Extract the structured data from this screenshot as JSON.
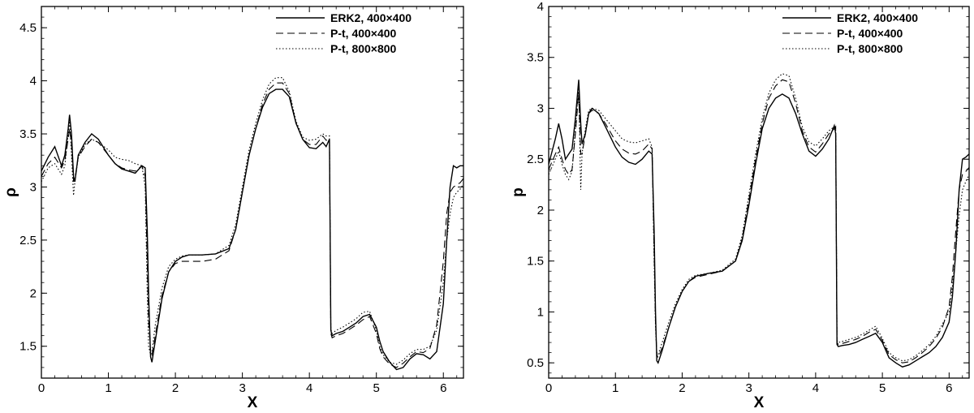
{
  "chart_data": [
    {
      "type": "line",
      "xlabel": "X",
      "ylabel": "ρ",
      "xlim": [
        0,
        6.3
      ],
      "ylim": [
        1.2,
        4.7
      ],
      "xticks": [
        "0",
        "1",
        "2",
        "3",
        "4",
        "5",
        "6"
      ],
      "yticks": [
        "1.5",
        "2",
        "2.5",
        "3",
        "3.5",
        "4",
        "4.5"
      ],
      "legend_position": "top-right",
      "series": [
        {
          "name": "ERK2, 400×400",
          "style": "solid",
          "x": [
            0,
            0.1,
            0.2,
            0.3,
            0.35,
            0.4,
            0.42,
            0.45,
            0.48,
            0.5,
            0.55,
            0.65,
            0.75,
            0.85,
            1.0,
            1.1,
            1.2,
            1.3,
            1.4,
            1.5,
            1.55,
            1.58,
            1.6,
            1.63,
            1.65,
            1.7,
            1.8,
            1.9,
            2.0,
            2.1,
            2.2,
            2.4,
            2.6,
            2.8,
            2.9,
            3.0,
            3.1,
            3.2,
            3.3,
            3.4,
            3.5,
            3.6,
            3.7,
            3.8,
            3.9,
            4.0,
            4.1,
            4.2,
            4.25,
            4.3,
            4.32,
            4.34,
            4.4,
            4.5,
            4.6,
            4.7,
            4.8,
            4.9,
            5.0,
            5.05,
            5.1,
            5.2,
            5.3,
            5.4,
            5.5,
            5.6,
            5.7,
            5.8,
            5.9,
            6.0,
            6.05,
            6.1,
            6.15,
            6.2,
            6.25,
            6.3
          ],
          "y": [
            3.15,
            3.28,
            3.38,
            3.2,
            3.3,
            3.55,
            3.68,
            3.5,
            3.1,
            3.05,
            3.3,
            3.42,
            3.5,
            3.45,
            3.3,
            3.22,
            3.17,
            3.15,
            3.13,
            3.2,
            3.18,
            2.6,
            2.0,
            1.4,
            1.35,
            1.55,
            1.95,
            2.2,
            2.3,
            2.34,
            2.36,
            2.36,
            2.37,
            2.42,
            2.6,
            2.95,
            3.3,
            3.55,
            3.75,
            3.88,
            3.92,
            3.92,
            3.85,
            3.6,
            3.45,
            3.37,
            3.36,
            3.42,
            3.38,
            3.45,
            1.65,
            1.6,
            1.62,
            1.64,
            1.68,
            1.72,
            1.78,
            1.8,
            1.68,
            1.55,
            1.45,
            1.35,
            1.28,
            1.3,
            1.38,
            1.43,
            1.42,
            1.38,
            1.45,
            1.9,
            2.5,
            3.0,
            3.2,
            3.18,
            3.2,
            3.2
          ]
        },
        {
          "name": "P-t, 400×400",
          "style": "dashed",
          "x": [
            0,
            0.1,
            0.2,
            0.3,
            0.35,
            0.4,
            0.42,
            0.45,
            0.48,
            0.5,
            0.55,
            0.65,
            0.75,
            0.85,
            1.0,
            1.1,
            1.2,
            1.3,
            1.4,
            1.5,
            1.55,
            1.58,
            1.6,
            1.63,
            1.65,
            1.7,
            1.8,
            1.9,
            2.0,
            2.1,
            2.2,
            2.4,
            2.6,
            2.8,
            2.9,
            3.0,
            3.1,
            3.2,
            3.3,
            3.4,
            3.5,
            3.6,
            3.7,
            3.8,
            3.9,
            4.0,
            4.1,
            4.2,
            4.25,
            4.3,
            4.32,
            4.34,
            4.4,
            4.5,
            4.6,
            4.7,
            4.8,
            4.9,
            5.0,
            5.05,
            5.1,
            5.2,
            5.3,
            5.4,
            5.5,
            5.6,
            5.7,
            5.8,
            5.9,
            6.0,
            6.05,
            6.1,
            6.15,
            6.2,
            6.25,
            6.3
          ],
          "y": [
            3.1,
            3.22,
            3.28,
            3.18,
            3.25,
            3.45,
            3.55,
            3.4,
            3.05,
            3.08,
            3.28,
            3.38,
            3.45,
            3.42,
            3.3,
            3.22,
            3.18,
            3.16,
            3.15,
            3.2,
            3.1,
            2.3,
            1.75,
            1.45,
            1.42,
            1.6,
            1.98,
            2.2,
            2.28,
            2.3,
            2.3,
            2.3,
            2.32,
            2.4,
            2.6,
            2.95,
            3.3,
            3.55,
            3.78,
            3.92,
            3.98,
            3.98,
            3.88,
            3.6,
            3.45,
            3.4,
            3.4,
            3.48,
            3.44,
            3.45,
            1.62,
            1.58,
            1.6,
            1.62,
            1.66,
            1.7,
            1.75,
            1.78,
            1.62,
            1.48,
            1.4,
            1.33,
            1.3,
            1.34,
            1.4,
            1.45,
            1.44,
            1.48,
            1.7,
            2.3,
            2.75,
            2.95,
            3.0,
            3.02,
            3.04,
            3.08
          ]
        },
        {
          "name": "P-t, 800×800",
          "style": "dotted",
          "x": [
            0,
            0.1,
            0.2,
            0.3,
            0.35,
            0.4,
            0.42,
            0.45,
            0.48,
            0.5,
            0.55,
            0.65,
            0.75,
            0.85,
            1.0,
            1.1,
            1.2,
            1.3,
            1.4,
            1.5,
            1.55,
            1.58,
            1.6,
            1.63,
            1.65,
            1.7,
            1.8,
            1.9,
            2.0,
            2.1,
            2.2,
            2.4,
            2.6,
            2.8,
            2.9,
            3.0,
            3.1,
            3.2,
            3.3,
            3.4,
            3.5,
            3.6,
            3.7,
            3.8,
            3.9,
            4.0,
            4.1,
            4.2,
            4.25,
            4.3,
            4.32,
            4.34,
            4.4,
            4.5,
            4.6,
            4.7,
            4.8,
            4.9,
            5.0,
            5.05,
            5.1,
            5.2,
            5.3,
            5.4,
            5.5,
            5.6,
            5.7,
            5.8,
            5.9,
            6.0,
            6.05,
            6.1,
            6.15,
            6.2,
            6.25,
            6.3
          ],
          "y": [
            3.05,
            3.18,
            3.22,
            3.12,
            3.2,
            3.5,
            3.62,
            3.3,
            2.92,
            3.05,
            3.28,
            3.4,
            3.45,
            3.42,
            3.35,
            3.28,
            3.26,
            3.25,
            3.22,
            3.2,
            3.0,
            2.0,
            1.5,
            1.42,
            1.45,
            1.7,
            2.05,
            2.25,
            2.32,
            2.35,
            2.36,
            2.36,
            2.37,
            2.45,
            2.65,
            3.0,
            3.35,
            3.6,
            3.82,
            3.97,
            4.03,
            4.03,
            3.9,
            3.62,
            3.47,
            3.44,
            3.45,
            3.5,
            3.48,
            3.48,
            1.66,
            1.62,
            1.65,
            1.68,
            1.72,
            1.76,
            1.82,
            1.83,
            1.65,
            1.5,
            1.42,
            1.35,
            1.33,
            1.37,
            1.43,
            1.47,
            1.47,
            1.5,
            1.65,
            2.1,
            2.5,
            2.75,
            2.9,
            2.95,
            2.98,
            3.03
          ]
        }
      ]
    },
    {
      "type": "line",
      "xlabel": "X",
      "ylabel": "p",
      "xlim": [
        0,
        6.3
      ],
      "ylim": [
        0.35,
        4.0
      ],
      "xticks": [
        "0",
        "1",
        "2",
        "3",
        "4",
        "5",
        "6"
      ],
      "yticks": [
        "0.5",
        "1",
        "1.5",
        "2",
        "2.5",
        "3",
        "3.5",
        "4"
      ],
      "legend_position": "top-right",
      "series": [
        {
          "name": "ERK2, 400×400",
          "style": "solid",
          "x": [
            0,
            0.1,
            0.15,
            0.2,
            0.25,
            0.3,
            0.35,
            0.4,
            0.45,
            0.48,
            0.5,
            0.55,
            0.6,
            0.65,
            0.75,
            0.85,
            1.0,
            1.1,
            1.2,
            1.3,
            1.4,
            1.5,
            1.55,
            1.58,
            1.6,
            1.62,
            1.64,
            1.7,
            1.8,
            1.9,
            2.0,
            2.1,
            2.2,
            2.4,
            2.6,
            2.8,
            2.9,
            3.0,
            3.1,
            3.2,
            3.3,
            3.4,
            3.5,
            3.6,
            3.7,
            3.8,
            3.9,
            4.0,
            4.1,
            4.2,
            4.28,
            4.3,
            4.32,
            4.34,
            4.4,
            4.5,
            4.6,
            4.7,
            4.8,
            4.9,
            5.0,
            5.1,
            5.2,
            5.3,
            5.4,
            5.5,
            5.6,
            5.7,
            5.8,
            5.9,
            6.0,
            6.05,
            6.1,
            6.15,
            6.2,
            6.25,
            6.3
          ],
          "y": [
            2.45,
            2.7,
            2.85,
            2.7,
            2.5,
            2.55,
            2.6,
            2.9,
            3.28,
            2.85,
            2.65,
            2.75,
            2.95,
            3.0,
            2.95,
            2.82,
            2.62,
            2.52,
            2.47,
            2.45,
            2.5,
            2.58,
            2.55,
            1.8,
            1.0,
            0.52,
            0.5,
            0.62,
            0.85,
            1.05,
            1.2,
            1.3,
            1.35,
            1.38,
            1.4,
            1.5,
            1.7,
            2.05,
            2.45,
            2.8,
            3.0,
            3.1,
            3.14,
            3.1,
            2.95,
            2.75,
            2.58,
            2.53,
            2.6,
            2.7,
            2.83,
            2.75,
            0.68,
            0.66,
            0.67,
            0.68,
            0.7,
            0.73,
            0.76,
            0.79,
            0.7,
            0.55,
            0.5,
            0.46,
            0.48,
            0.52,
            0.56,
            0.6,
            0.66,
            0.75,
            0.9,
            1.15,
            1.6,
            2.2,
            2.5,
            2.52,
            2.55
          ]
        },
        {
          "name": "P-t, 400×400",
          "style": "dashed",
          "x": [
            0,
            0.1,
            0.15,
            0.2,
            0.25,
            0.3,
            0.35,
            0.4,
            0.45,
            0.48,
            0.5,
            0.55,
            0.6,
            0.65,
            0.75,
            0.85,
            1.0,
            1.1,
            1.2,
            1.3,
            1.4,
            1.5,
            1.55,
            1.58,
            1.6,
            1.62,
            1.64,
            1.7,
            1.8,
            1.9,
            2.0,
            2.1,
            2.2,
            2.4,
            2.6,
            2.8,
            2.9,
            3.0,
            3.1,
            3.2,
            3.3,
            3.4,
            3.5,
            3.6,
            3.7,
            3.8,
            3.9,
            4.0,
            4.1,
            4.2,
            4.28,
            4.3,
            4.32,
            4.34,
            4.4,
            4.5,
            4.6,
            4.7,
            4.8,
            4.9,
            5.0,
            5.1,
            5.2,
            5.3,
            5.4,
            5.5,
            5.6,
            5.7,
            5.8,
            5.9,
            6.0,
            6.05,
            6.1,
            6.15,
            6.2,
            6.25,
            6.3
          ],
          "y": [
            2.4,
            2.55,
            2.62,
            2.5,
            2.4,
            2.35,
            2.4,
            2.75,
            3.15,
            2.55,
            2.55,
            2.75,
            2.95,
            2.98,
            2.95,
            2.85,
            2.68,
            2.6,
            2.56,
            2.55,
            2.58,
            2.65,
            2.6,
            1.6,
            0.9,
            0.58,
            0.55,
            0.65,
            0.85,
            1.05,
            1.2,
            1.3,
            1.34,
            1.37,
            1.4,
            1.5,
            1.72,
            2.1,
            2.5,
            2.85,
            3.1,
            3.22,
            3.28,
            3.26,
            3.05,
            2.78,
            2.62,
            2.57,
            2.65,
            2.75,
            2.8,
            2.82,
            0.7,
            0.68,
            0.69,
            0.71,
            0.73,
            0.76,
            0.8,
            0.83,
            0.72,
            0.58,
            0.53,
            0.5,
            0.51,
            0.55,
            0.6,
            0.66,
            0.74,
            0.85,
            1.05,
            1.35,
            1.8,
            2.2,
            2.35,
            2.38,
            2.42
          ]
        },
        {
          "name": "P-t, 800×800",
          "style": "dotted",
          "x": [
            0,
            0.1,
            0.15,
            0.2,
            0.25,
            0.3,
            0.35,
            0.4,
            0.45,
            0.48,
            0.5,
            0.55,
            0.6,
            0.65,
            0.75,
            0.85,
            1.0,
            1.1,
            1.2,
            1.3,
            1.4,
            1.5,
            1.55,
            1.58,
            1.6,
            1.62,
            1.64,
            1.7,
            1.8,
            1.9,
            2.0,
            2.1,
            2.2,
            2.4,
            2.6,
            2.8,
            2.9,
            3.0,
            3.1,
            3.2,
            3.3,
            3.4,
            3.5,
            3.6,
            3.7,
            3.8,
            3.9,
            4.0,
            4.1,
            4.2,
            4.28,
            4.3,
            4.32,
            4.34,
            4.4,
            4.5,
            4.6,
            4.7,
            4.8,
            4.9,
            5.0,
            5.1,
            5.2,
            5.3,
            5.4,
            5.5,
            5.6,
            5.7,
            5.8,
            5.9,
            6.0,
            6.05,
            6.1,
            6.15,
            6.2,
            6.25,
            6.3
          ],
          "y": [
            2.35,
            2.5,
            2.58,
            2.45,
            2.35,
            2.3,
            2.38,
            2.8,
            3.2,
            2.2,
            2.55,
            2.8,
            2.98,
            3.0,
            2.98,
            2.9,
            2.78,
            2.7,
            2.67,
            2.66,
            2.68,
            2.7,
            2.62,
            1.5,
            0.85,
            0.6,
            0.58,
            0.7,
            0.9,
            1.08,
            1.22,
            1.32,
            1.36,
            1.38,
            1.41,
            1.52,
            1.75,
            2.15,
            2.55,
            2.9,
            3.15,
            3.28,
            3.34,
            3.32,
            3.1,
            2.82,
            2.67,
            2.63,
            2.7,
            2.78,
            2.82,
            2.8,
            0.72,
            0.7,
            0.71,
            0.73,
            0.75,
            0.78,
            0.82,
            0.86,
            0.74,
            0.6,
            0.55,
            0.52,
            0.53,
            0.57,
            0.62,
            0.68,
            0.76,
            0.88,
            1.0,
            1.25,
            1.6,
            1.95,
            2.2,
            2.28,
            2.35
          ]
        }
      ]
    }
  ]
}
